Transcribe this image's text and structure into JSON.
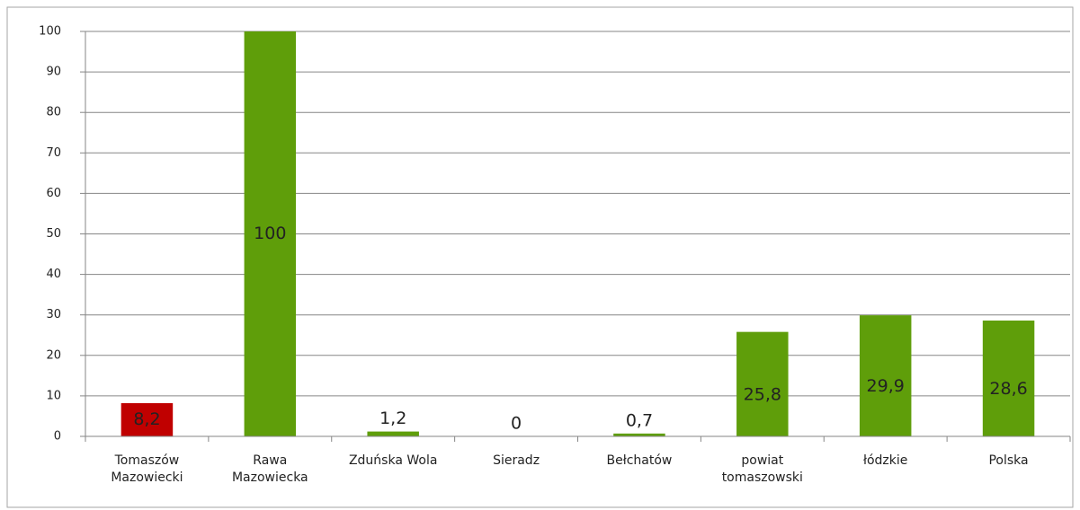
{
  "chart_data": {
    "type": "bar",
    "categories": [
      "Tomaszów Mazowiecki",
      "Rawa Mazowiecka",
      "Zduńska Wola",
      "Sieradz",
      "Bełchatów",
      "powiat tomaszowski",
      "łódzkie",
      "Polska"
    ],
    "values": [
      8.2,
      100,
      1.2,
      0,
      0.7,
      25.8,
      29.9,
      28.6
    ],
    "value_labels": [
      "8,2",
      "100",
      "1,2",
      "0",
      "0,7",
      "25,8",
      "29,9",
      "28,6"
    ],
    "colors": [
      "#c00000",
      "#5f9e0a",
      "#5f9e0a",
      "#5f9e0a",
      "#5f9e0a",
      "#5f9e0a",
      "#5f9e0a",
      "#5f9e0a"
    ],
    "ylim": [
      0,
      100
    ],
    "yticks": [
      0,
      10,
      20,
      30,
      40,
      50,
      60,
      70,
      80,
      90,
      100
    ],
    "grid": true
  }
}
